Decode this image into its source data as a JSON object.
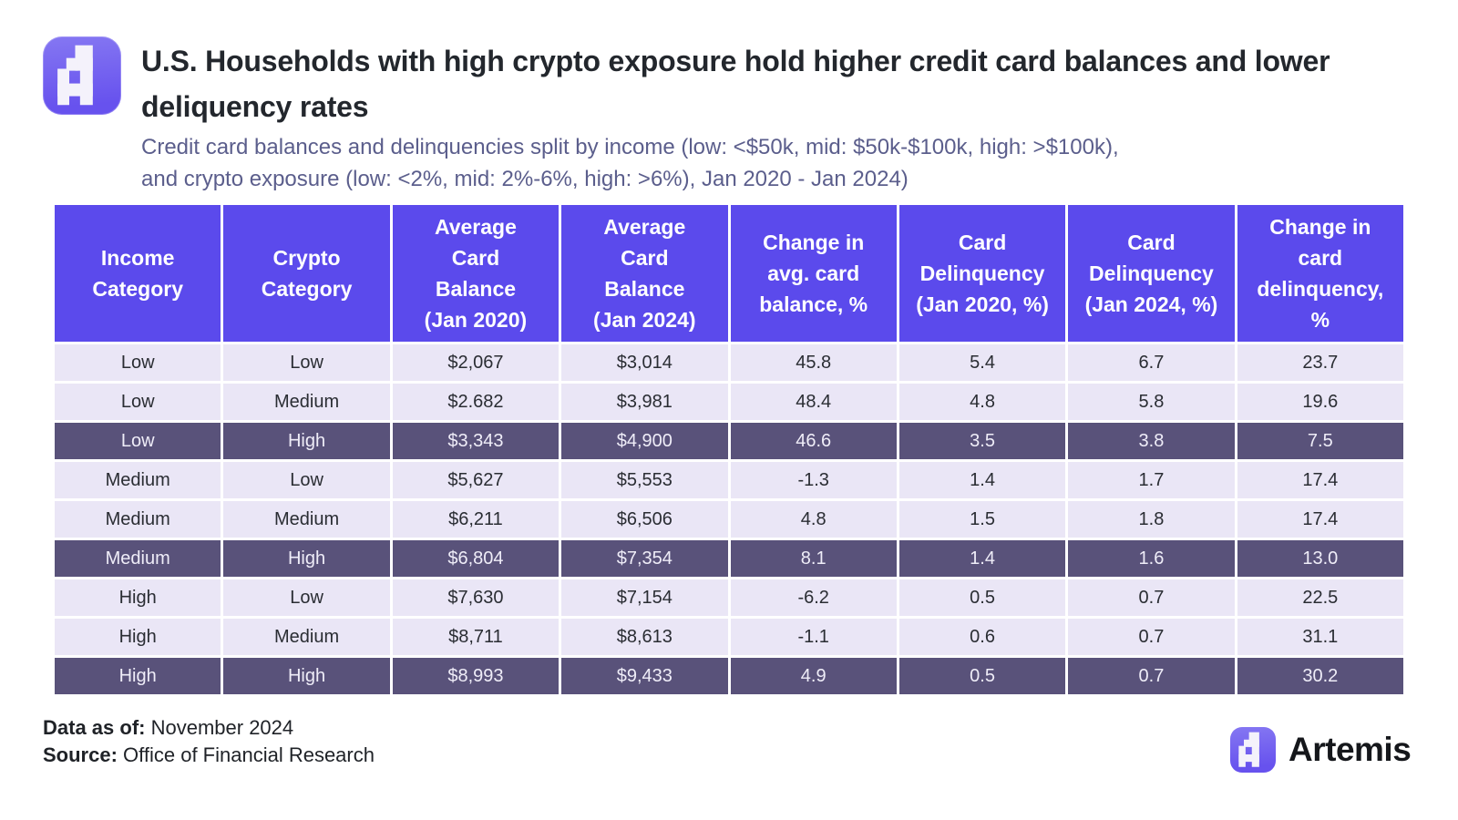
{
  "header": {
    "title": "U.S. Households with high crypto exposure hold higher credit card balances and lower deliquency rates",
    "subtitle_line1": "Credit card balances and delinquencies split by income (low: <$50k, mid: $50k-$100k, high: >$100k),",
    "subtitle_line2": "and crypto exposure (low: <2%, mid: 2%-6%, high: >6%), Jan 2020 - Jan 2024)"
  },
  "table": {
    "column_labels": [
      "Income\nCategory",
      "Crypto\nCategory",
      "Average\nCard\nBalance\n(Jan 2020)",
      "Average\nCard\nBalance\n(Jan 2024)",
      "Change in\navg. card\nbalance, %",
      "Card\nDelinquency\n(Jan 2020, %)",
      "Card\nDelinquency\n(Jan 2024, %)",
      "Change in\ncard\ndelinquency,\n%"
    ],
    "rows": [
      [
        "Low",
        "Low",
        "$2,067",
        "$3,014",
        "45.8",
        "5.4",
        "6.7",
        "23.7"
      ],
      [
        "Low",
        "Medium",
        "$2.682",
        "$3,981",
        "48.4",
        "4.8",
        "5.8",
        "19.6"
      ],
      [
        "Low",
        "High",
        "$3,343",
        "$4,900",
        "46.6",
        "3.5",
        "3.8",
        "7.5"
      ],
      [
        "Medium",
        "Low",
        "$5,627",
        "$5,553",
        "-1.3",
        "1.4",
        "1.7",
        "17.4"
      ],
      [
        "Medium",
        "Medium",
        "$6,211",
        "$6,506",
        "4.8",
        "1.5",
        "1.8",
        "17.4"
      ],
      [
        "Medium",
        "High",
        "$6,804",
        "$7,354",
        "8.1",
        "1.4",
        "1.6",
        "13.0"
      ],
      [
        "High",
        "Low",
        "$7,630",
        "$7,154",
        "-6.2",
        "0.5",
        "0.7",
        "22.5"
      ],
      [
        "High",
        "Medium",
        "$8,711",
        "$8,613",
        "-1.1",
        "0.6",
        "0.7",
        "31.1"
      ],
      [
        "High",
        "High",
        "$8,993",
        "$9,433",
        "4.9",
        "0.5",
        "0.7",
        "30.2"
      ]
    ],
    "highlight_rows": [
      2,
      5,
      8
    ]
  },
  "chart_data": {
    "type": "table",
    "title": "U.S. Households with high crypto exposure hold higher credit card balances and lower deliquency rates",
    "subtitle": "Credit card balances and delinquencies split by income (low: <$50k, mid: $50k-$100k, high: >$100k), and crypto exposure (low: <2%, mid: 2%-6%, high: >6%), Jan 2020 - Jan 2024)",
    "columns": [
      "Income Category",
      "Crypto Category",
      "Average Card Balance (Jan 2020)",
      "Average Card Balance (Jan 2024)",
      "Change in avg. card balance, %",
      "Card Delinquency (Jan 2020, %)",
      "Card Delinquency (Jan 2024, %)",
      "Change in card delinquency, %"
    ],
    "rows": [
      [
        "Low",
        "Low",
        "$2,067",
        "$3,014",
        45.8,
        5.4,
        6.7,
        23.7
      ],
      [
        "Low",
        "Medium",
        "$2.682",
        "$3,981",
        48.4,
        4.8,
        5.8,
        19.6
      ],
      [
        "Low",
        "High",
        "$3,343",
        "$4,900",
        46.6,
        3.5,
        3.8,
        7.5
      ],
      [
        "Medium",
        "Low",
        "$5,627",
        "$5,553",
        -1.3,
        1.4,
        1.7,
        17.4
      ],
      [
        "Medium",
        "Medium",
        "$6,211",
        "$6,506",
        4.8,
        1.5,
        1.8,
        17.4
      ],
      [
        "Medium",
        "High",
        "$6,804",
        "$7,354",
        8.1,
        1.4,
        1.6,
        13.0
      ],
      [
        "High",
        "Low",
        "$7,630",
        "$7,154",
        -6.2,
        0.5,
        0.7,
        22.5
      ],
      [
        "High",
        "Medium",
        "$8,711",
        "$8,613",
        -1.1,
        0.6,
        0.7,
        31.1
      ],
      [
        "High",
        "High",
        "$8,993",
        "$9,433",
        4.9,
        0.5,
        0.7,
        30.2
      ]
    ],
    "highlighted_rows_note": "Rows with High crypto category are shown on a dark slate-purple background"
  },
  "footer": {
    "data_as_of_label": "Data as of:",
    "data_as_of_value": " November 2024",
    "source_label": "Source:",
    "source_value": " Office of Financial Research",
    "brand_name": "Artemis"
  },
  "colors": {
    "header_purple": "#5B4AEC",
    "row_light": "#EAE6F6",
    "row_dark": "#59527A",
    "row_dark_text": "#EFEDF8",
    "title_color": "#23272D",
    "subtitle_color": "#5B5E8C",
    "footer_text": "#1F2227",
    "logo_grad_top": "#8577F2",
    "logo_grad_bottom": "#6752EE"
  }
}
